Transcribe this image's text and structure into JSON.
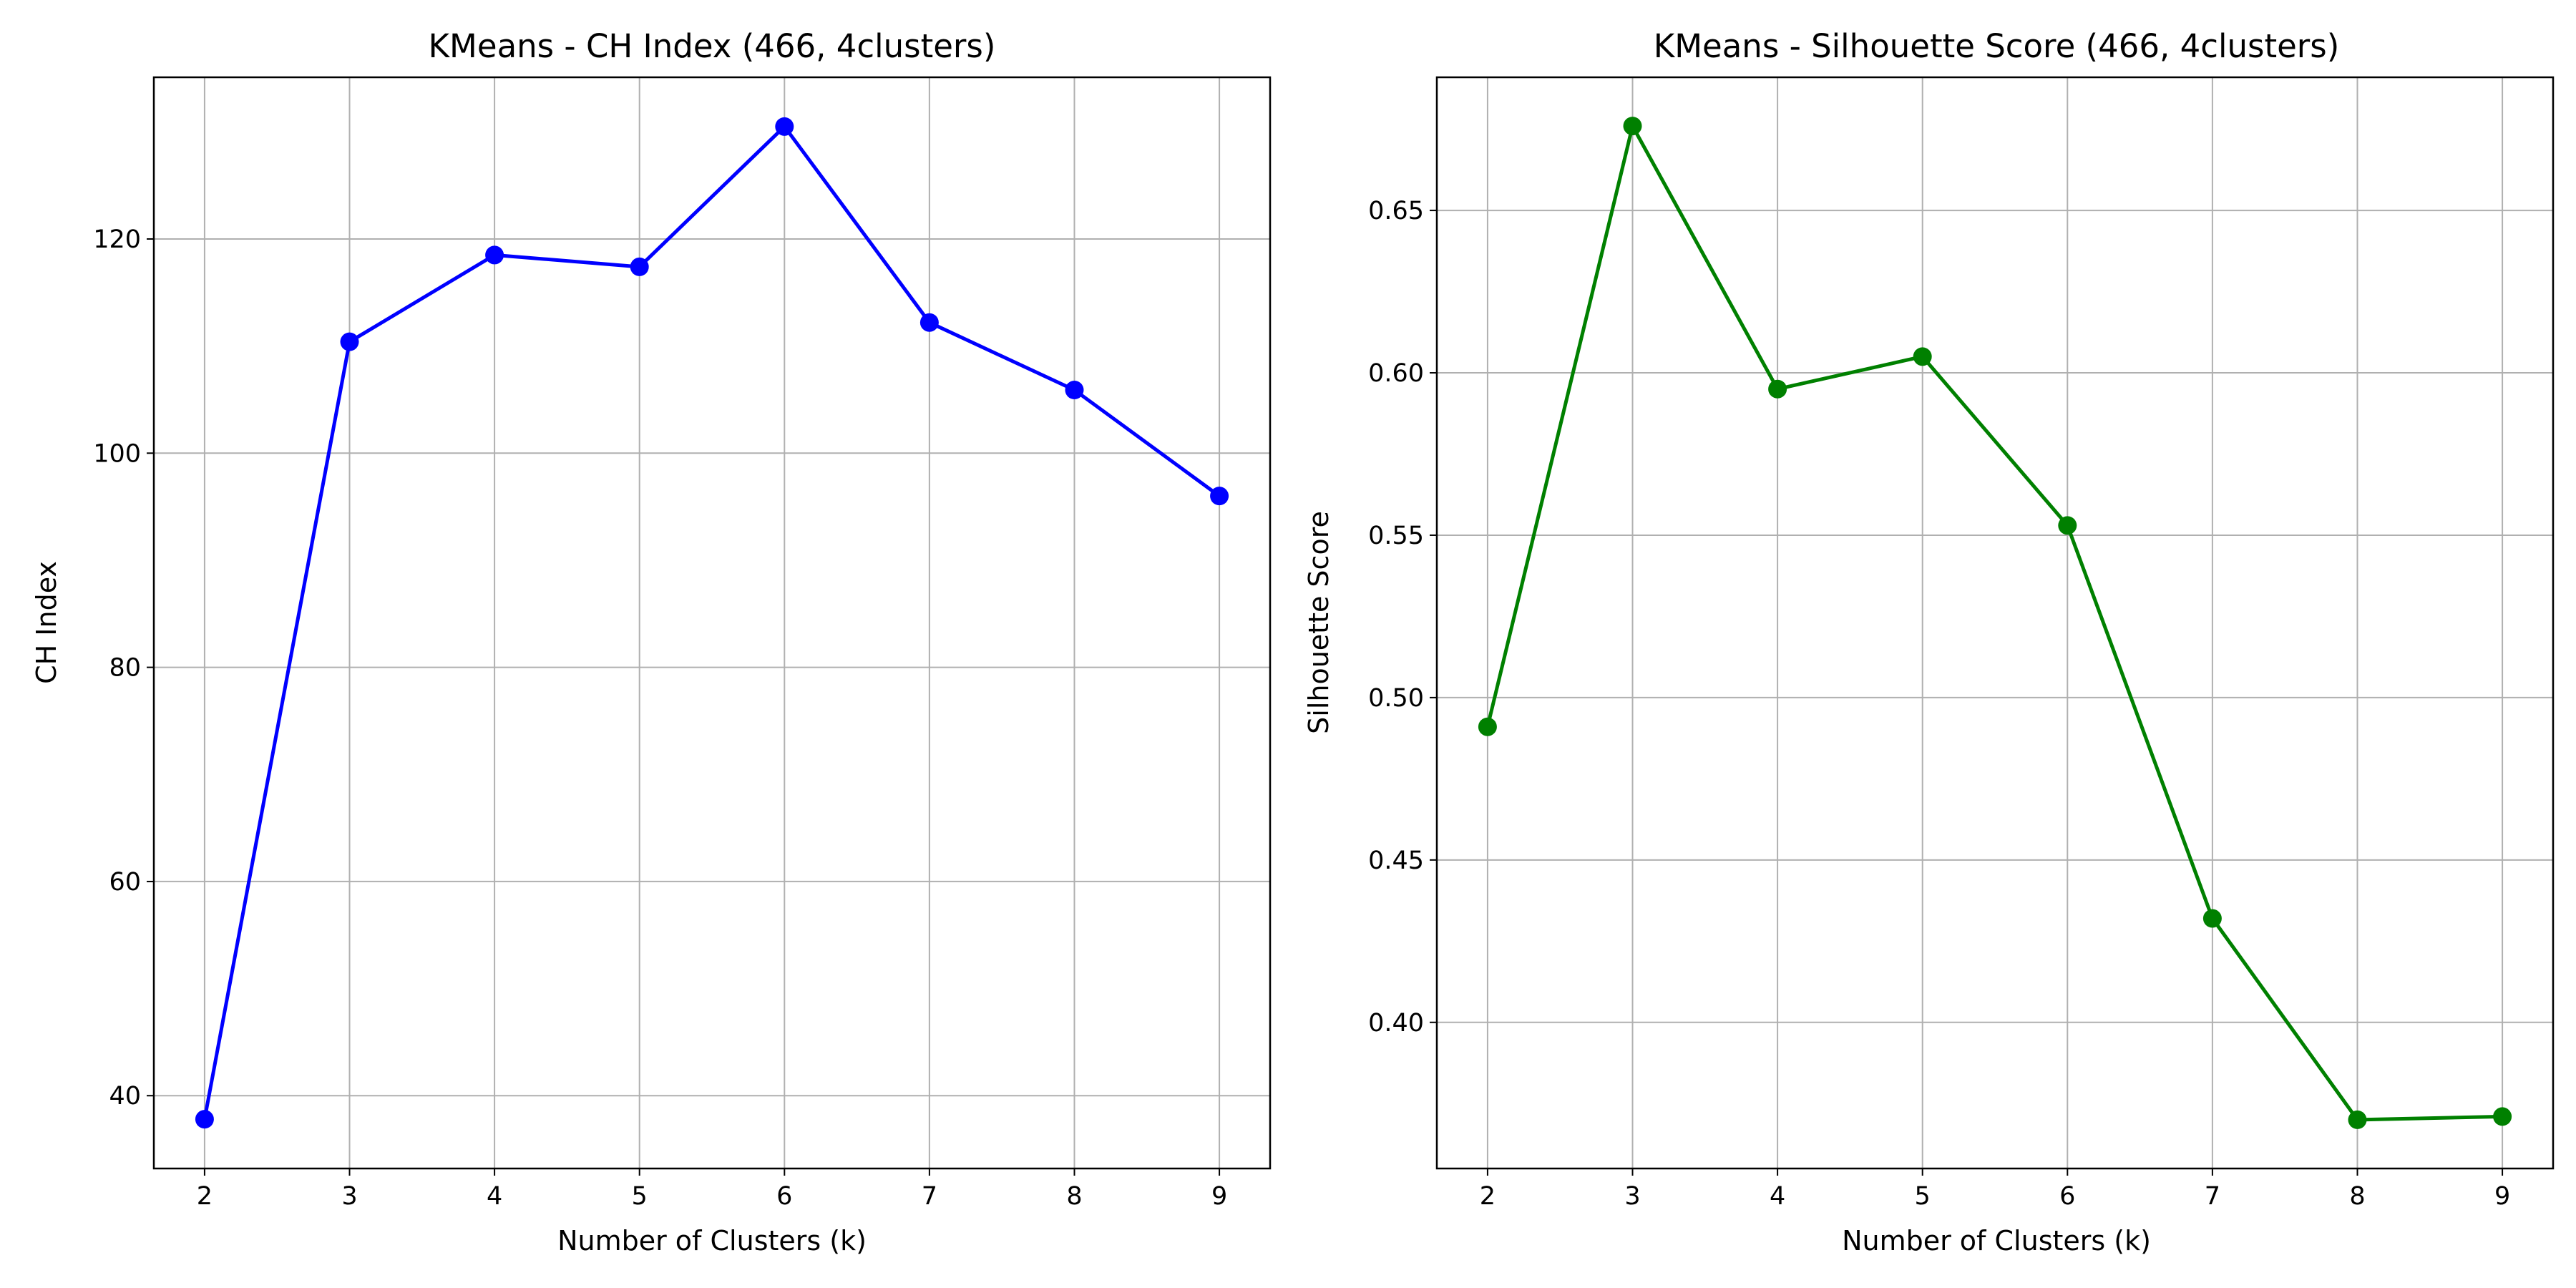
{
  "charts": [
    {
      "title": "KMeans - CH Index (466, 4clusters)",
      "xlabel": "Number of Clusters (k)",
      "ylabel": "CH Index",
      "line_color": "#0000ff"
    },
    {
      "title": "KMeans - Silhouette Score (466, 4clusters)",
      "xlabel": "Number of Clusters (k)",
      "ylabel": "Silhouette Score",
      "line_color": "#008000"
    }
  ],
  "chart_data": [
    {
      "type": "line",
      "title": "KMeans - CH Index (466, 4clusters)",
      "xlabel": "Number of Clusters (k)",
      "ylabel": "CH Index",
      "x": [
        2,
        3,
        4,
        5,
        6,
        7,
        8,
        9
      ],
      "series": [
        {
          "values": [
            37.8,
            110.4,
            118.5,
            117.4,
            130.5,
            112.2,
            105.9,
            96.0
          ],
          "color": "#0000ff",
          "marker": "circle"
        }
      ],
      "xlim": [
        1.65,
        9.35
      ],
      "ylim": [
        33.2,
        135.1
      ],
      "xticks": [
        2,
        3,
        4,
        5,
        6,
        7,
        8,
        9
      ],
      "yticks": [
        40,
        60,
        80,
        100,
        120
      ],
      "ytick_labels": [
        "40",
        "60",
        "80",
        "100",
        "120"
      ],
      "grid": true
    },
    {
      "type": "line",
      "title": "KMeans - Silhouette Score (466, 4clusters)",
      "xlabel": "Number of Clusters (k)",
      "ylabel": "Silhouette Score",
      "x": [
        2,
        3,
        4,
        5,
        6,
        7,
        8,
        9
      ],
      "series": [
        {
          "values": [
            0.491,
            0.676,
            0.595,
            0.605,
            0.553,
            0.432,
            0.37,
            0.371
          ],
          "color": "#008000",
          "marker": "circle"
        }
      ],
      "xlim": [
        1.65,
        9.35
      ],
      "ylim": [
        0.355,
        0.691
      ],
      "xticks": [
        2,
        3,
        4,
        5,
        6,
        7,
        8,
        9
      ],
      "yticks": [
        0.4,
        0.45,
        0.5,
        0.55,
        0.6,
        0.65
      ],
      "ytick_labels": [
        "0.40",
        "0.45",
        "0.50",
        "0.55",
        "0.60",
        "0.65"
      ],
      "grid": true
    }
  ]
}
